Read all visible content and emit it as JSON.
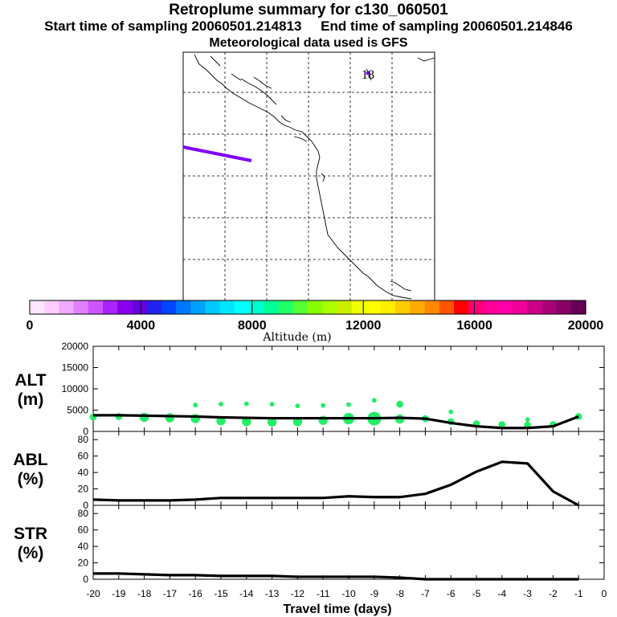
{
  "header": {
    "title": "Retroplume summary for c130_060501",
    "start_label": "Start time of sampling 20060501.214813",
    "end_label": "End time of sampling 20060501.214846",
    "met": "Meteorological data used is GFS"
  },
  "map": {
    "marker_label": "18",
    "trajectory_color": "#8000ff",
    "marker_color": "#8000ff"
  },
  "colorbar": {
    "title": "Altitude (m)",
    "tick_labels": [
      "0",
      "4000",
      "8000",
      "12000",
      "16000",
      "20000"
    ],
    "colors": [
      "#ffe6ff",
      "#ffccff",
      "#f0aaff",
      "#e080ff",
      "#cc55ff",
      "#aa22ff",
      "#8800ee",
      "#6600dd",
      "#2222ee",
      "#0044ff",
      "#0077ff",
      "#00a0ff",
      "#00c8ff",
      "#00e6ff",
      "#00ffff",
      "#00ffcc",
      "#00ff99",
      "#22ff66",
      "#55ff33",
      "#88ff00",
      "#aaff00",
      "#ccee00",
      "#eeff00",
      "#ffff00",
      "#ffee00",
      "#ffcc00",
      "#ffaa00",
      "#ff8800",
      "#ff5500",
      "#ff0000",
      "#ff0077",
      "#ff0099",
      "#ff00aa",
      "#ee0099",
      "#cc0088",
      "#aa0077",
      "#880066",
      "#660055"
    ]
  },
  "chart_data": [
    {
      "type": "line",
      "id": "alt",
      "ylabel": "ALT\n(m)",
      "ylabel_lines": [
        "ALT",
        "(m)"
      ],
      "ylim": [
        0,
        20000
      ],
      "yticks": [
        "0",
        "5000",
        "10000",
        "15000",
        "20000"
      ],
      "x": [
        -20,
        -19,
        -18,
        -17,
        -16,
        -15,
        -14,
        -13,
        -12,
        -11,
        -10,
        -9,
        -8,
        -7,
        -6,
        -5,
        -4,
        -3,
        -2,
        -1
      ],
      "values": [
        3800,
        3800,
        3700,
        3600,
        3500,
        3300,
        3200,
        3100,
        3100,
        3100,
        3100,
        3100,
        3200,
        3000,
        2000,
        1200,
        800,
        800,
        1200,
        3500
      ],
      "scatter": {
        "color": "#22ee66",
        "x": [
          -20,
          -19,
          -18,
          -17,
          -16,
          -16,
          -15,
          -15,
          -14,
          -14,
          -13,
          -13,
          -12,
          -12,
          -11,
          -11,
          -10,
          -10,
          -9,
          -9,
          -8,
          -8,
          -7,
          -6,
          -6,
          -5,
          -4,
          -3,
          -3,
          -2,
          -1
        ],
        "y": [
          3400,
          3500,
          3300,
          3200,
          3000,
          6200,
          2500,
          6400,
          2300,
          6500,
          2200,
          6400,
          2300,
          6000,
          2600,
          6100,
          3000,
          6300,
          3000,
          7300,
          6400,
          2900,
          3000,
          2300,
          4600,
          1800,
          1600,
          1500,
          2800,
          1600,
          3500
        ],
        "size": [
          2,
          2,
          3,
          3,
          3,
          1,
          3,
          1,
          3,
          1,
          3,
          1,
          3,
          1,
          3,
          1,
          4,
          1,
          5,
          1,
          2,
          3,
          2,
          2,
          1,
          2,
          2,
          2,
          1,
          2,
          2
        ]
      }
    },
    {
      "type": "line",
      "id": "abl",
      "ylabel_lines": [
        "ABL",
        "(%)"
      ],
      "ylim": [
        0,
        90
      ],
      "yticks": [
        "0",
        "20",
        "40",
        "60",
        "80"
      ],
      "x": [
        -20,
        -19,
        -18,
        -17,
        -16,
        -15,
        -14,
        -13,
        -12,
        -11,
        -10,
        -9,
        -8,
        -7,
        -6,
        -5,
        -4,
        -3,
        -2,
        -1
      ],
      "values": [
        7,
        6,
        6,
        6,
        7,
        9,
        9,
        9,
        9,
        9,
        11,
        10,
        10,
        14,
        25,
        41,
        53,
        51,
        17,
        0
      ]
    },
    {
      "type": "line",
      "id": "str",
      "ylabel_lines": [
        "STR",
        "(%)"
      ],
      "ylim": [
        0,
        90
      ],
      "yticks": [
        "0",
        "20",
        "40",
        "60",
        "80"
      ],
      "xlabel": "Travel time (days)",
      "xticks": [
        "-20",
        "-19",
        "-18",
        "-17",
        "-16",
        "-15",
        "-14",
        "-13",
        "-12",
        "-11",
        "-10",
        "-9",
        "-8",
        "-7",
        "-6",
        "-5",
        "-4",
        "-3",
        "-2",
        "-1",
        "0"
      ],
      "x": [
        -20,
        -19,
        -18,
        -17,
        -16,
        -15,
        -14,
        -13,
        -12,
        -11,
        -10,
        -9,
        -8,
        -7,
        -6,
        -5,
        -4,
        -3,
        -2,
        -1
      ],
      "values": [
        7,
        7,
        6,
        5,
        5,
        4,
        4,
        4,
        3,
        3,
        3,
        3,
        2,
        0,
        0,
        0,
        0,
        0,
        0,
        0
      ]
    }
  ]
}
